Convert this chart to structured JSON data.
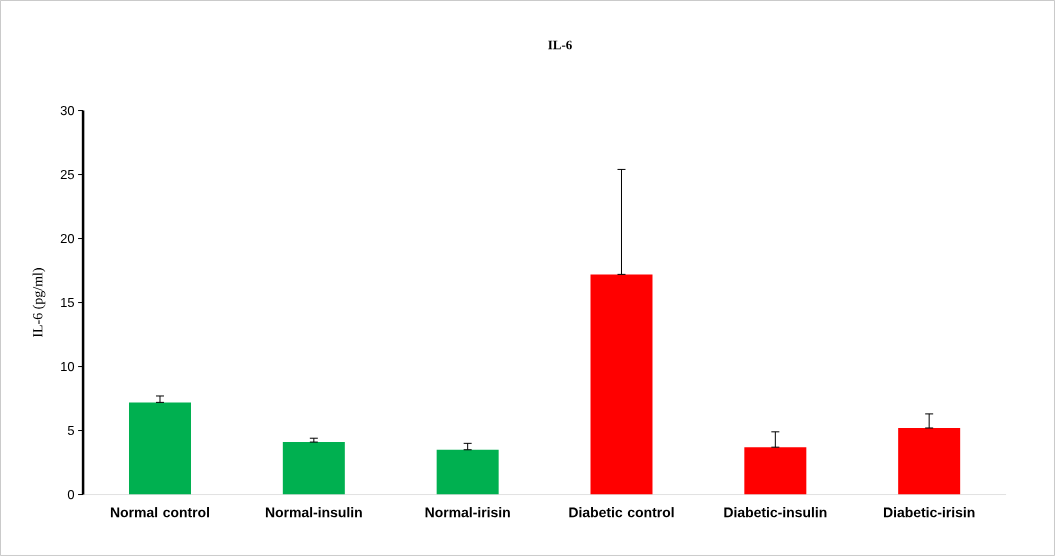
{
  "chart_data": {
    "type": "bar",
    "title": "IL-6",
    "ylabel": "IL-6 (pg/ml)",
    "categories": [
      "Normal control",
      "Normal-insulin",
      "Normal-irisin",
      "Diabetic control",
      "Diabetic-insulin",
      "Diabetic-irisin"
    ],
    "values": [
      7.2,
      4.1,
      3.5,
      17.2,
      3.7,
      5.2
    ],
    "colors": [
      "#00b050",
      "#00b050",
      "#00b050",
      "#ff0000",
      "#ff0000",
      "#ff0000"
    ],
    "errors": [
      [
        7.2,
        7.7
      ],
      [
        4.1,
        4.4
      ],
      [
        3.5,
        4.0
      ],
      [
        17.2,
        25.4
      ],
      [
        3.7,
        4.9
      ],
      [
        5.2,
        6.3
      ]
    ],
    "ylim": [
      0,
      30
    ],
    "yticks": [
      0,
      5,
      10,
      15,
      20,
      25,
      30
    ],
    "grid": false
  }
}
